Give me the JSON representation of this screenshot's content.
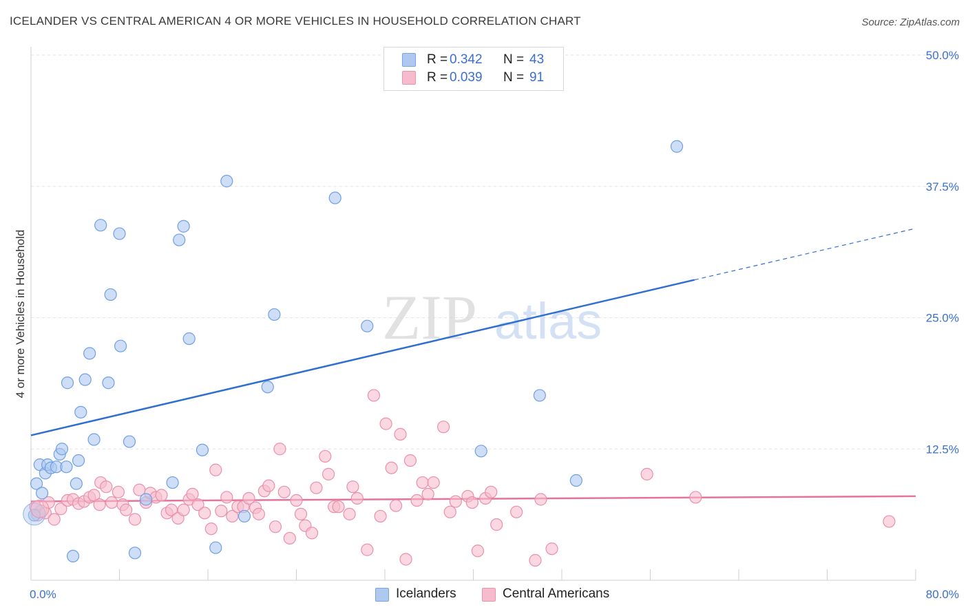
{
  "title": "ICELANDER VS CENTRAL AMERICAN 4 OR MORE VEHICLES IN HOUSEHOLD CORRELATION CHART",
  "source": "Source: ZipAtlas.com",
  "watermark": {
    "zip": "ZIP",
    "atlas": "atlas"
  },
  "legend": {
    "r_label": "R =",
    "n_label": "N =",
    "rows": [
      {
        "r": "0.342",
        "n": "43",
        "color": "#aec8f0",
        "border": "#7aa3e0"
      },
      {
        "r": "0.039",
        "n": "91",
        "color": "#f6bccd",
        "border": "#e992ad"
      }
    ]
  },
  "bottom_legend": [
    {
      "label": "Icelanders",
      "color": "#aec8f0",
      "border": "#7aa3e0"
    },
    {
      "label": "Central Americans",
      "color": "#f6bccd",
      "border": "#e992ad"
    }
  ],
  "chart_data": {
    "type": "scatter",
    "title": "ICELANDER VS CENTRAL AMERICAN 4 OR MORE VEHICLES IN HOUSEHOLD CORRELATION CHART",
    "xlabel": "",
    "ylabel": "4 or more Vehicles in Household",
    "xlim": [
      0,
      80
    ],
    "ylim": [
      0,
      50
    ],
    "x_tick_labels": [
      "0.0%",
      "80.0%"
    ],
    "y_tick_labels": [
      "12.5%",
      "25.0%",
      "37.5%",
      "50.0%"
    ],
    "y_ticks": [
      12.5,
      25.0,
      37.5,
      50.0
    ],
    "grid": true,
    "series": [
      {
        "name": "Icelanders",
        "color": "#6f9fe4",
        "fill": "#aec8f0",
        "trend": {
          "x0": 0,
          "y0": 13.8,
          "x1": 60,
          "y1": 28.6,
          "dash_to_x": 80,
          "dash_to_y": 33.5,
          "color": "#2f6fd1"
        },
        "points": [
          [
            0.3,
            6.2
          ],
          [
            0.5,
            9.2
          ],
          [
            0.8,
            11.0
          ],
          [
            1.0,
            8.3
          ],
          [
            1.3,
            10.2
          ],
          [
            1.5,
            11.0
          ],
          [
            1.8,
            10.7
          ],
          [
            2.3,
            10.8
          ],
          [
            2.6,
            12.0
          ],
          [
            2.8,
            12.5
          ],
          [
            3.2,
            10.8
          ],
          [
            3.3,
            18.8
          ],
          [
            3.8,
            2.3
          ],
          [
            4.1,
            9.2
          ],
          [
            4.3,
            11.4
          ],
          [
            4.5,
            16.0
          ],
          [
            4.9,
            19.1
          ],
          [
            5.3,
            21.6
          ],
          [
            5.7,
            13.4
          ],
          [
            6.3,
            33.8
          ],
          [
            7.0,
            18.8
          ],
          [
            7.2,
            27.2
          ],
          [
            8.0,
            33.0
          ],
          [
            8.1,
            22.3
          ],
          [
            8.9,
            13.2
          ],
          [
            9.4,
            2.6
          ],
          [
            10.4,
            7.7
          ],
          [
            12.8,
            9.3
          ],
          [
            13.4,
            32.4
          ],
          [
            13.8,
            33.7
          ],
          [
            14.3,
            23.0
          ],
          [
            15.5,
            12.4
          ],
          [
            16.7,
            3.1
          ],
          [
            17.7,
            38.0
          ],
          [
            19.3,
            6.1
          ],
          [
            21.4,
            18.4
          ],
          [
            22.0,
            25.3
          ],
          [
            27.5,
            36.4
          ],
          [
            30.4,
            24.2
          ],
          [
            40.7,
            12.3
          ],
          [
            46.0,
            17.6
          ],
          [
            49.3,
            9.5
          ],
          [
            58.4,
            41.3
          ]
        ]
      },
      {
        "name": "Central Americans",
        "color": "#ea8fab",
        "fill": "#f6bccd",
        "trend": {
          "x0": 0,
          "y0": 7.5,
          "x1": 80,
          "y1": 8.0,
          "color": "#e5739a"
        },
        "points": [
          [
            0.4,
            7.0
          ],
          [
            0.6,
            6.2
          ],
          [
            0.9,
            6.6
          ],
          [
            1.3,
            6.4
          ],
          [
            1.6,
            7.4
          ],
          [
            2.1,
            5.8
          ],
          [
            2.7,
            6.8
          ],
          [
            3.3,
            7.6
          ],
          [
            3.8,
            7.7
          ],
          [
            4.3,
            7.3
          ],
          [
            4.8,
            7.5
          ],
          [
            5.3,
            7.9
          ],
          [
            5.7,
            8.1
          ],
          [
            6.2,
            7.2
          ],
          [
            6.3,
            9.3
          ],
          [
            6.8,
            8.9
          ],
          [
            7.3,
            7.4
          ],
          [
            7.9,
            8.4
          ],
          [
            8.3,
            7.2
          ],
          [
            8.6,
            6.7
          ],
          [
            9.4,
            5.8
          ],
          [
            9.8,
            8.6
          ],
          [
            10.4,
            7.4
          ],
          [
            10.8,
            8.3
          ],
          [
            11.3,
            7.9
          ],
          [
            11.8,
            8.1
          ],
          [
            12.3,
            6.4
          ],
          [
            12.7,
            6.7
          ],
          [
            13.3,
            5.9
          ],
          [
            13.8,
            6.7
          ],
          [
            14.3,
            7.7
          ],
          [
            14.6,
            8.2
          ],
          [
            15.1,
            7.2
          ],
          [
            15.7,
            6.4
          ],
          [
            16.3,
            4.9
          ],
          [
            16.7,
            10.5
          ],
          [
            17.2,
            6.6
          ],
          [
            17.7,
            7.9
          ],
          [
            18.2,
            6.1
          ],
          [
            18.7,
            7.0
          ],
          [
            19.2,
            7.0
          ],
          [
            19.7,
            7.8
          ],
          [
            20.3,
            6.9
          ],
          [
            20.6,
            6.3
          ],
          [
            21.1,
            8.5
          ],
          [
            21.5,
            9.0
          ],
          [
            22.1,
            5.1
          ],
          [
            22.5,
            12.5
          ],
          [
            22.9,
            8.4
          ],
          [
            23.4,
            4.0
          ],
          [
            24.0,
            7.6
          ],
          [
            24.4,
            6.3
          ],
          [
            24.8,
            5.2
          ],
          [
            25.4,
            4.5
          ],
          [
            25.8,
            8.8
          ],
          [
            26.6,
            11.8
          ],
          [
            26.9,
            10.1
          ],
          [
            27.4,
            7.0
          ],
          [
            27.8,
            7.0
          ],
          [
            28.8,
            6.3
          ],
          [
            29.1,
            8.9
          ],
          [
            29.5,
            7.8
          ],
          [
            30.4,
            2.9
          ],
          [
            31.0,
            17.6
          ],
          [
            31.6,
            6.1
          ],
          [
            32.1,
            14.9
          ],
          [
            32.6,
            10.7
          ],
          [
            33.0,
            7.1
          ],
          [
            33.4,
            13.9
          ],
          [
            33.9,
            2.0
          ],
          [
            34.3,
            11.4
          ],
          [
            34.9,
            7.6
          ],
          [
            35.4,
            9.3
          ],
          [
            35.9,
            8.2
          ],
          [
            36.4,
            9.3
          ],
          [
            37.3,
            14.6
          ],
          [
            37.9,
            6.5
          ],
          [
            38.4,
            7.5
          ],
          [
            39.5,
            8.0
          ],
          [
            39.9,
            7.4
          ],
          [
            40.4,
            2.8
          ],
          [
            41.1,
            7.8
          ],
          [
            41.6,
            8.4
          ],
          [
            42.1,
            5.3
          ],
          [
            43.9,
            6.5
          ],
          [
            45.6,
            1.9
          ],
          [
            46.1,
            7.7
          ],
          [
            47.1,
            3.0
          ],
          [
            55.7,
            10.1
          ],
          [
            60.1,
            7.9
          ],
          [
            77.6,
            5.6
          ]
        ]
      }
    ]
  }
}
